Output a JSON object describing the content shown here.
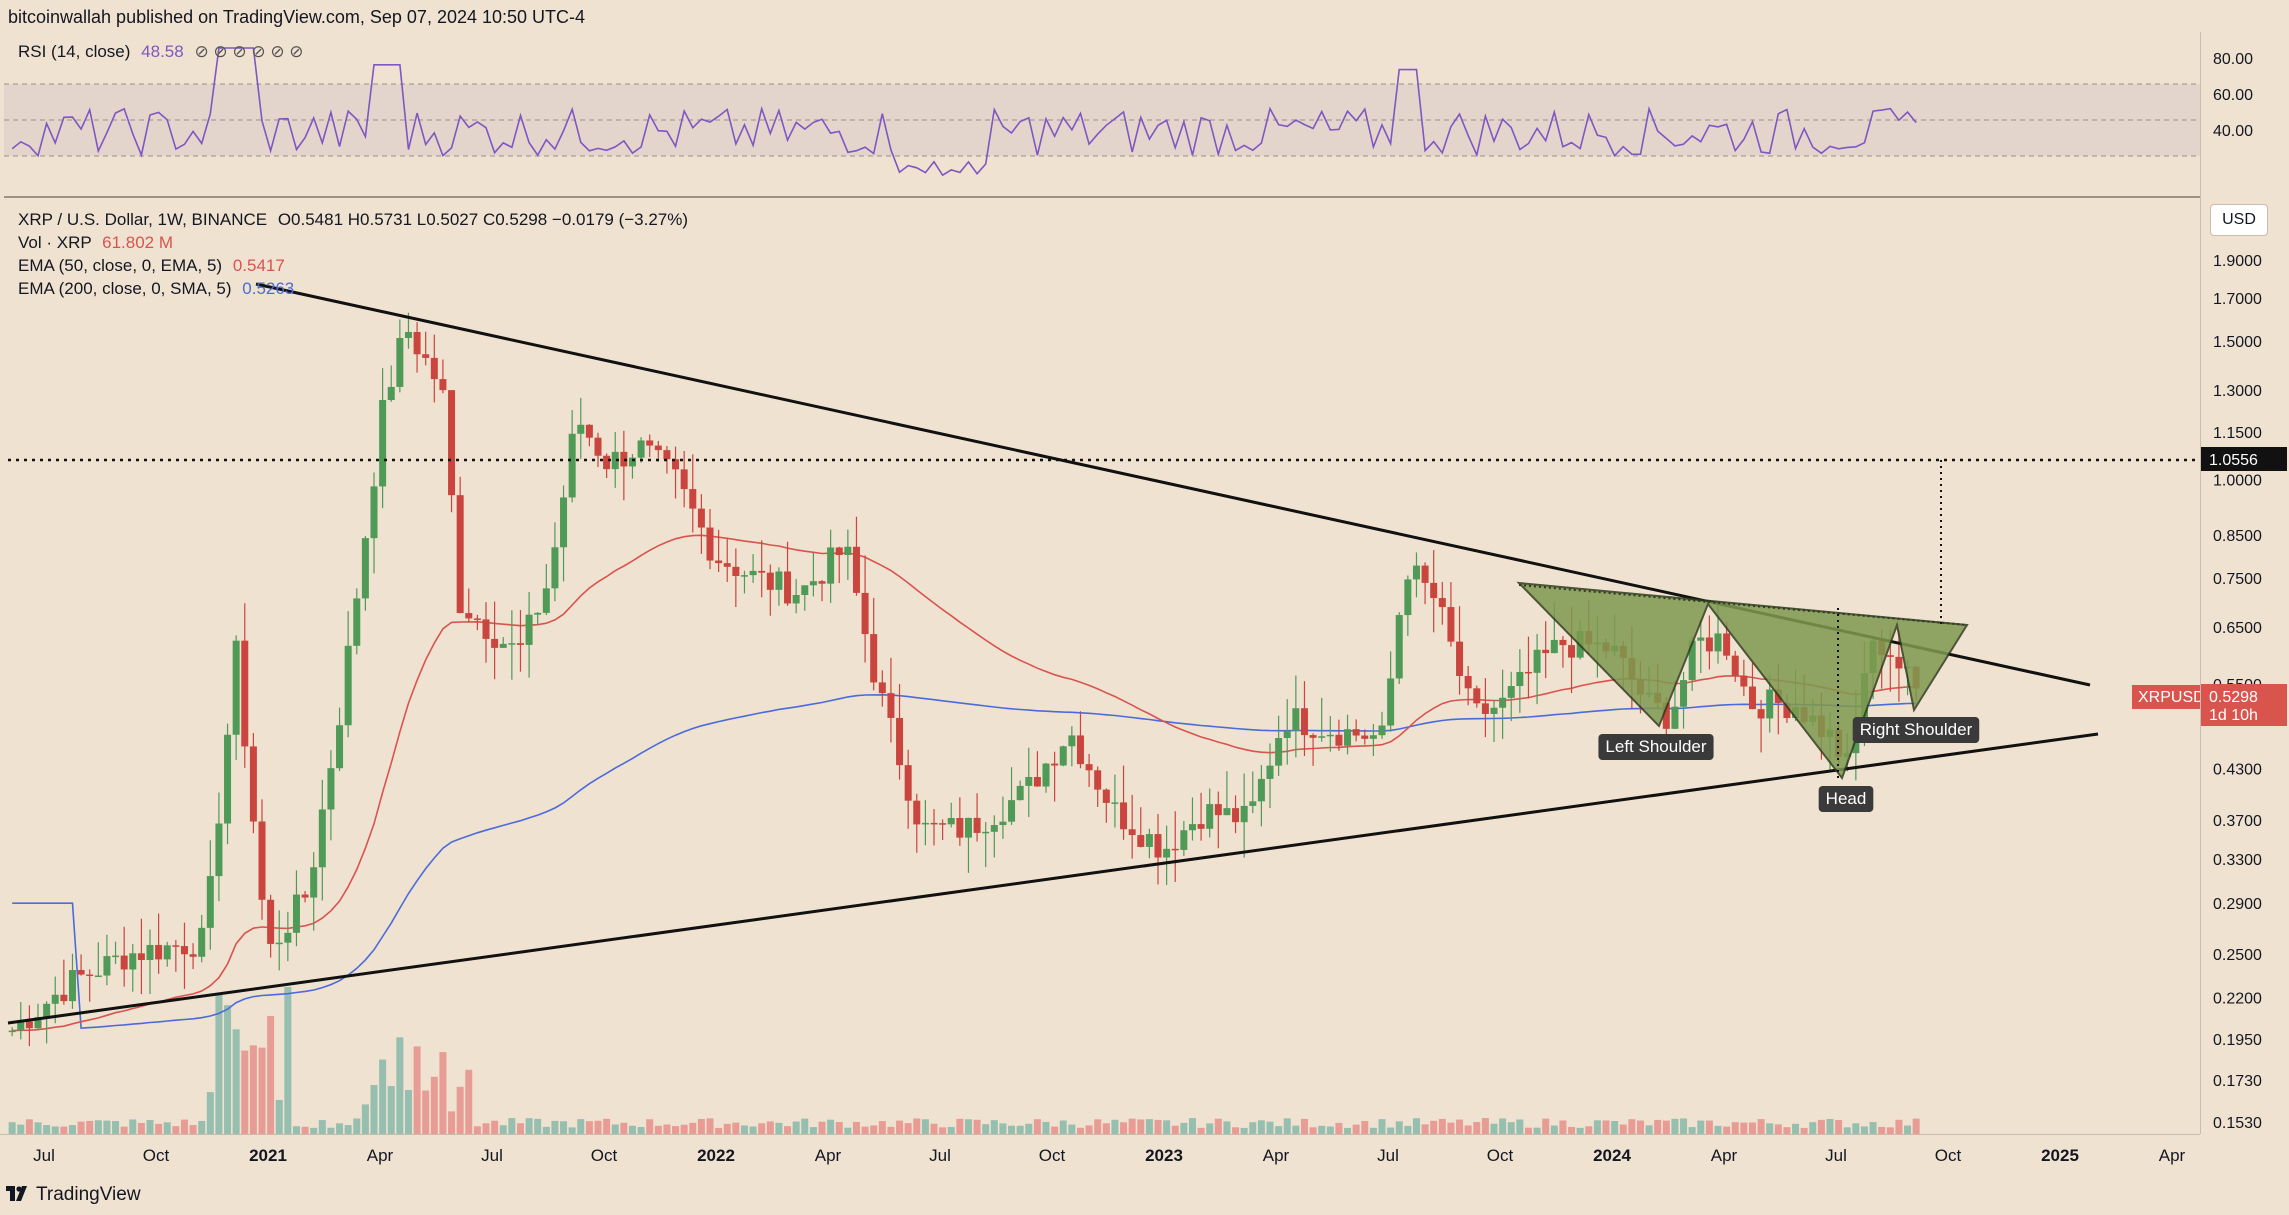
{
  "header": {
    "published": "bitcoinwallah published on TradingView.com, Sep 07, 2024 10:50 UTC-4"
  },
  "rsi": {
    "label": "RSI (14, close)",
    "value": "48.58",
    "icons": "⊘ ⊘ ⊘ ⊘ ⊘ ⊘",
    "axis_ticks": [
      "80.00",
      "60.00",
      "40.00"
    ],
    "line_color": "#7e57c2"
  },
  "legend": {
    "pair": "XRP / U.S. Dollar, 1W, BINANCE",
    "ohlc": "O0.5481  H0.5731  L0.5027  C0.5298  −0.0179 (−3.27%)",
    "vol_label": "Vol · XRP",
    "vol_value": "61.802 M",
    "ema50_label": "EMA (50, close, 0, EMA, 5)",
    "ema50_value": "0.5417",
    "ema200_label": "EMA (200, close, 0, SMA, 5)",
    "ema200_value": "0.5263"
  },
  "axis": {
    "currency_button": "USD",
    "price_ticks": [
      "1.9000",
      "1.7000",
      "1.5000",
      "1.3000",
      "1.1500",
      "1.0000",
      "0.8500",
      "0.7500",
      "0.6500",
      "0.5500",
      "0.4300",
      "0.3700",
      "0.3300",
      "0.2900",
      "0.2500",
      "0.2200",
      "0.1950",
      "0.1730",
      "0.1530"
    ],
    "time_ticks": [
      "Jul",
      "Oct",
      "2021",
      "Apr",
      "Jul",
      "Oct",
      "2022",
      "Apr",
      "Jul",
      "Oct",
      "2023",
      "Apr",
      "Jul",
      "Oct",
      "2024",
      "Apr",
      "Jul",
      "Oct",
      "2025",
      "Apr"
    ],
    "target_label": "1.0556",
    "symbol_label": "XRPUSD",
    "last_price": "0.5298",
    "countdown": "1d 10h"
  },
  "annotations": {
    "left_shoulder": "Left Shoulder",
    "head": "Head",
    "right_shoulder": "Right Shoulder"
  },
  "colors": {
    "background": "#f0e2d0",
    "up_candle": "#4f9a57",
    "down_candle": "#c9453e",
    "ema50": "#d9534f",
    "ema200": "#4a6bdc",
    "pattern_fill": "#7f9a4f",
    "price_tag": "#d9544d"
  },
  "footer": {
    "brand": "TradingView"
  },
  "chart_data": {
    "type": "candlestick",
    "title": "XRP / U.S. Dollar, 1W, BINANCE",
    "y_scale": "log",
    "ylim": [
      0.148,
      2.05
    ],
    "x": [
      "2020-07",
      "2020-10",
      "2021-01",
      "2021-04",
      "2021-07",
      "2021-10",
      "2022-01",
      "2022-04",
      "2022-07",
      "2022-10",
      "2023-01",
      "2023-04",
      "2023-07",
      "2023-10",
      "2024-01",
      "2024-04",
      "2024-07",
      "2024-09"
    ],
    "close": [
      0.19,
      0.25,
      0.26,
      1.56,
      0.58,
      1.18,
      0.87,
      0.82,
      0.33,
      0.48,
      0.36,
      0.5,
      0.78,
      0.52,
      0.57,
      0.52,
      0.43,
      0.53
    ],
    "series": [
      {
        "name": "EMA (50, close, 0, EMA, 5)",
        "last": 0.5417
      },
      {
        "name": "EMA (200, close, 0, SMA, 5)",
        "last": 0.5263
      }
    ],
    "last_close": 0.5298,
    "target_level": 1.0556,
    "rsi_last": 48.58
  }
}
